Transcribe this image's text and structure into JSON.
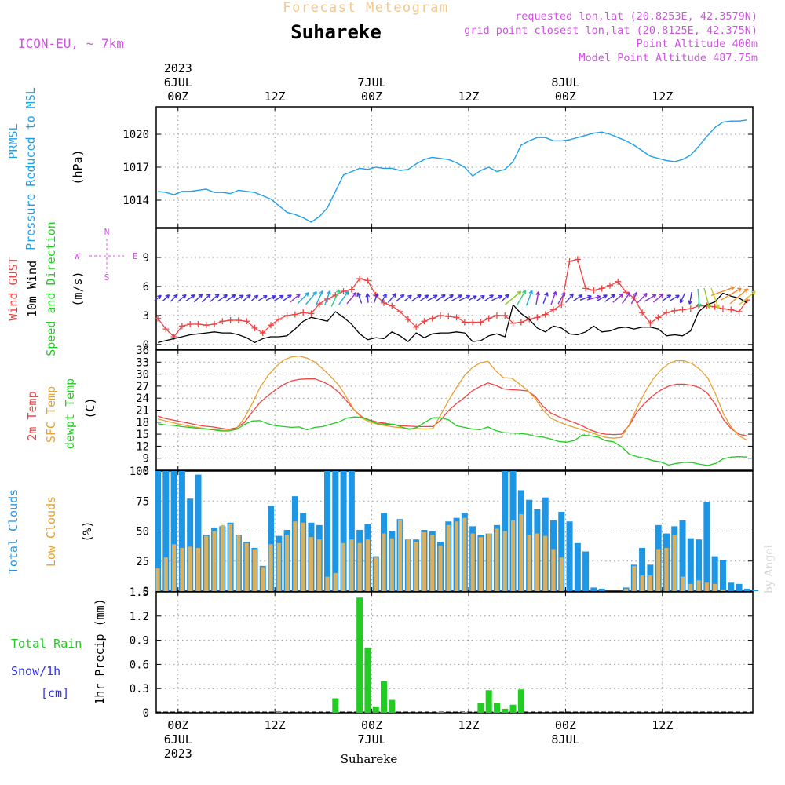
{
  "header": {
    "title": "Forecast Meteogram",
    "location": "Suhareke",
    "model": "ICON-EU, ~ 7km",
    "requested": "requested lon,lat (20.8253E, 42.3579N)",
    "gridpoint": "grid point closest lon,lat (20.8125E, 42.375N)",
    "point_alt": "Point Altitude 400m",
    "model_alt": "Model Point Altitude 487.75m",
    "footer": "Suhareke",
    "watermark": "by Angel",
    "compass": {
      "n": "N",
      "s": "S",
      "e": "E",
      "w": "W"
    }
  },
  "colors": {
    "pressure": "#1ea0e8",
    "gust": "#ee4444",
    "wind": "#000000",
    "t2m": "#ee4444",
    "sfc": "#e8a030",
    "dew": "#22cc22",
    "total_clouds": "#1e96e6",
    "low_clouds": "#d8b060",
    "rain": "#22cc22",
    "snow": "#3333ee",
    "label_title": "#f0c890",
    "label_header": "#cc55dd"
  },
  "chart_data": [
    {
      "type": "line",
      "name": "pressure",
      "panel_labels": [
        "PRMSL",
        "Pressure Reduced to MSL",
        "(hPa)"
      ],
      "y_ticks": [
        1014,
        1017,
        1020
      ],
      "ylim": [
        1011.5,
        1022.5
      ],
      "x_ticks": [
        {
          "h": 0,
          "top": [
            "2023",
            "6JUL",
            "00Z"
          ],
          "bottom": [
            "00Z",
            "6JUL",
            "2023"
          ]
        },
        {
          "h": 12,
          "top": [
            "12Z"
          ],
          "bottom": [
            "12Z"
          ]
        },
        {
          "h": 24,
          "top": [
            "7JUL",
            "00Z"
          ],
          "bottom": [
            "00Z",
            "7JUL"
          ]
        },
        {
          "h": 36,
          "top": [
            "12Z"
          ],
          "bottom": [
            "12Z"
          ]
        },
        {
          "h": 48,
          "top": [
            "8JUL",
            "00Z"
          ],
          "bottom": [
            "00Z",
            "8JUL"
          ]
        },
        {
          "h": 60,
          "top": [
            "12Z"
          ],
          "bottom": [
            "12Z"
          ]
        }
      ],
      "xlim": [
        -2.7,
        71.2
      ],
      "x": [
        -2.5,
        -1.5,
        -0.5,
        0.5,
        1.5,
        2.5,
        3.5,
        4.5,
        5.5,
        6.5,
        7.5,
        8.5,
        9.5,
        10.5,
        11.5,
        12.5,
        13.5,
        14.5,
        15.5,
        16.5,
        17.5,
        18.5,
        19.5,
        20.5,
        21.5,
        22.5,
        23.5,
        24.5,
        25.5,
        26.5,
        27.5,
        28.5,
        29.5,
        30.5,
        31.5,
        32.5,
        33.5,
        34.5,
        35.5,
        36.5,
        37.5,
        38.5,
        39.5,
        40.5,
        41.5,
        42.5,
        43.5,
        44.5,
        45.5,
        46.5,
        47.5,
        48.5,
        49.5,
        50.5,
        51.5,
        52.5,
        53.5,
        54.5,
        55.5,
        56.5,
        57.5,
        58.5,
        59.5,
        60.5,
        61.5,
        62.5,
        63.5,
        64.5,
        65.5,
        66.5,
        67.5,
        68.5,
        69.5,
        70.5
      ],
      "y": [
        1014.8,
        1014.7,
        1014.5,
        1014.8,
        1014.8,
        1014.9,
        1015.0,
        1014.7,
        1014.7,
        1014.6,
        1014.9,
        1014.8,
        1014.7,
        1014.4,
        1014.1,
        1013.5,
        1012.9,
        1012.7,
        1012.4,
        1012.0,
        1012.5,
        1013.3,
        1014.8,
        1016.3,
        1016.6,
        1016.9,
        1016.8,
        1017.0,
        1016.9,
        1016.9,
        1016.7,
        1016.8,
        1017.3,
        1017.7,
        1017.9,
        1017.8,
        1017.7,
        1017.4,
        1017.0,
        1016.2,
        1016.7,
        1017.0,
        1016.6,
        1016.8,
        1017.5,
        1019.0,
        1019.4,
        1019.7,
        1019.7,
        1019.4,
        1019.4,
        1019.5,
        1019.7,
        1019.9,
        1020.1,
        1020.2,
        1020.0,
        1019.7,
        1019.4,
        1019.0,
        1018.5,
        1018.0,
        1017.8,
        1017.6,
        1017.5,
        1017.7,
        1018.1,
        1018.9,
        1019.8,
        1020.6,
        1021.1,
        1021.2,
        1021.2,
        1021.3
      ]
    },
    {
      "type": "line",
      "name": "wind",
      "panel_labels": [
        "Wind GUST",
        "10m Wind",
        "Speed and Direction",
        "(m/s)"
      ],
      "y_ticks": [
        0,
        3,
        6,
        9
      ],
      "ylim": [
        -0.5,
        12.0
      ],
      "xlim": [
        -2.7,
        71.2
      ],
      "gust": [
        2.7,
        1.6,
        0.8,
        1.9,
        2.1,
        2.1,
        2.0,
        2.1,
        2.4,
        2.5,
        2.5,
        2.4,
        1.7,
        1.2,
        2.0,
        2.6,
        3.0,
        3.1,
        3.3,
        3.2,
        4.2,
        4.7,
        5.1,
        5.5,
        5.7,
        6.8,
        6.6,
        5.1,
        4.3,
        4.0,
        3.4,
        2.6,
        1.8,
        2.4,
        2.7,
        3.0,
        2.9,
        2.8,
        2.3,
        2.3,
        2.3,
        2.7,
        3.0,
        3.0,
        2.2,
        2.3,
        2.6,
        2.8,
        3.1,
        3.6,
        4.1,
        8.6,
        8.8,
        5.8,
        5.6,
        5.8,
        6.1,
        6.5,
        5.4,
        4.8,
        3.3,
        2.2,
        2.8,
        3.3,
        3.5,
        3.6,
        3.7,
        4.0,
        4.0,
        3.9,
        3.7,
        3.6,
        3.4,
        4.6
      ],
      "speed": [
        0.2,
        0.4,
        0.6,
        0.8,
        1.0,
        1.1,
        1.2,
        1.3,
        1.2,
        1.2,
        1.0,
        0.7,
        0.2,
        0.6,
        0.8,
        0.8,
        0.9,
        1.6,
        2.4,
        2.8,
        2.6,
        2.4,
        3.4,
        2.8,
        2.1,
        1.1,
        0.5,
        0.7,
        0.6,
        1.3,
        0.9,
        0.3,
        1.2,
        0.7,
        1.1,
        1.2,
        1.2,
        1.3,
        1.2,
        0.3,
        0.4,
        0.9,
        1.1,
        0.8,
        4.1,
        3.2,
        2.6,
        1.7,
        1.3,
        1.9,
        1.7,
        1.1,
        1.0,
        1.3,
        1.9,
        1.3,
        1.4,
        1.7,
        1.8,
        1.6,
        1.8,
        1.8,
        1.6,
        0.9,
        1.0,
        0.9,
        1.4,
        3.4,
        4.1,
        4.4,
        5.3,
        5.0,
        4.8,
        4.3
      ]
    },
    {
      "type": "line",
      "name": "temperature",
      "panel_labels": [
        "2m Temp",
        "SFC Temp",
        "dewpt Temp",
        "(C)"
      ],
      "y_ticks": [
        6,
        9,
        12,
        15,
        18,
        21,
        24,
        27,
        30,
        33,
        36
      ],
      "ylim": [
        6,
        36
      ],
      "xlim": [
        -2.7,
        71.2
      ],
      "series": [
        {
          "name": "2m Temp",
          "values": [
            19.5,
            18.9,
            18.5,
            18.1,
            17.7,
            17.3,
            17.0,
            16.8,
            16.5,
            16.2,
            16.6,
            17.9,
            20.5,
            22.9,
            24.6,
            26.1,
            27.4,
            28.3,
            28.7,
            28.8,
            28.8,
            28.1,
            27.1,
            25.5,
            23.4,
            21.0,
            19.3,
            18.5,
            18.0,
            17.7,
            17.4,
            17.1,
            17.0,
            16.9,
            16.9,
            16.9,
            18.5,
            20.9,
            22.6,
            24.1,
            25.8,
            26.9,
            27.8,
            27.2,
            26.3,
            26.1,
            26.0,
            25.8,
            24.5,
            22.0,
            20.3,
            19.4,
            18.6,
            17.9,
            17.1,
            16.1,
            15.4,
            15.0,
            14.9,
            15.0,
            17.2,
            20.6,
            22.8,
            24.6,
            26.0,
            27.0,
            27.5,
            27.5,
            27.2,
            26.6,
            25.1,
            22.3,
            18.6,
            16.3,
            15.0,
            14.5
          ]
        },
        {
          "name": "SFC Temp",
          "values": [
            18.8,
            18.3,
            17.8,
            17.4,
            17.0,
            16.7,
            16.4,
            16.2,
            16.0,
            15.9,
            16.4,
            19.0,
            22.6,
            26.6,
            29.6,
            31.8,
            33.5,
            34.3,
            34.5,
            34.0,
            33.0,
            31.3,
            29.4,
            27.3,
            24.3,
            21.0,
            19.0,
            18.0,
            17.5,
            17.1,
            16.8,
            16.6,
            16.4,
            16.4,
            16.3,
            16.4,
            19.8,
            23.4,
            26.6,
            29.6,
            31.6,
            32.8,
            33.2,
            30.8,
            29.1,
            29.0,
            27.6,
            26.0,
            24.0,
            21.1,
            19.0,
            18.1,
            17.3,
            16.7,
            16.1,
            15.5,
            14.8,
            14.2,
            14.0,
            14.2,
            17.5,
            21.7,
            25.5,
            28.7,
            31.0,
            32.6,
            33.4,
            33.3,
            32.6,
            31.2,
            29.0,
            24.9,
            20.0,
            16.7,
            14.5,
            13.5
          ]
        },
        {
          "name": "dewpt Temp",
          "values": [
            17.6,
            17.3,
            17.2,
            16.9,
            16.7,
            16.5,
            16.3,
            16.1,
            15.8,
            15.8,
            16.2,
            17.4,
            18.3,
            18.4,
            17.6,
            17.1,
            16.9,
            16.7,
            16.8,
            16.1,
            16.7,
            16.9,
            17.5,
            18.0,
            19.0,
            19.3,
            19.2,
            18.4,
            17.6,
            17.5,
            17.5,
            16.8,
            16.2,
            16.7,
            18.0,
            19.1,
            19.1,
            18.6,
            17.1,
            16.7,
            16.3,
            16.1,
            16.8,
            15.9,
            15.4,
            15.3,
            15.2,
            15.0,
            14.5,
            14.3,
            13.8,
            13.2,
            13.0,
            13.4,
            14.8,
            14.6,
            14.3,
            13.4,
            13.1,
            11.9,
            10.0,
            9.4,
            9.0,
            8.4,
            8.1,
            7.3,
            7.7,
            8.0,
            7.9,
            7.5,
            7.2,
            7.7,
            8.9,
            9.3,
            9.4,
            9.3
          ]
        }
      ],
      "wind_dir_from_deg": [
        230,
        225,
        225,
        230,
        235,
        225,
        225,
        230,
        235,
        235,
        240,
        230,
        230,
        240,
        245,
        240,
        235,
        230,
        225,
        220,
        205,
        200,
        205,
        215,
        220,
        160,
        175,
        200,
        210,
        220,
        230,
        230,
        235,
        235,
        240,
        235,
        235,
        240,
        245,
        240,
        235,
        235,
        245,
        225,
        230,
        210,
        200,
        190,
        200,
        200,
        210,
        220,
        235,
        250,
        255,
        240,
        235,
        230,
        215,
        205,
        225,
        240,
        230,
        235,
        240,
        25,
        10,
        355,
        345,
        340,
        250,
        240,
        230,
        230
      ]
    },
    {
      "type": "bar",
      "name": "clouds",
      "panel_labels": [
        "Total Clouds",
        "Low Clouds",
        "(%)"
      ],
      "y_ticks": [
        0,
        25,
        50,
        75,
        100
      ],
      "ylim": [
        0,
        100
      ],
      "xlim": [
        -2.7,
        71.2
      ],
      "series": [
        {
          "name": "Total Clouds",
          "values": [
            100,
            100,
            100,
            100,
            77,
            97,
            47,
            53,
            54,
            57,
            47,
            41,
            36,
            21,
            71,
            46,
            51,
            79,
            65,
            57,
            55,
            100,
            100,
            100,
            100,
            51,
            56,
            29,
            65,
            50,
            60,
            43,
            43,
            51,
            50,
            41,
            58,
            61,
            65,
            54,
            47,
            48,
            55,
            100,
            100,
            84,
            76,
            68,
            78,
            59,
            66,
            58,
            40,
            33,
            3,
            2,
            0,
            0,
            3,
            22,
            36,
            22,
            55,
            48,
            54,
            59,
            44,
            43,
            74,
            29,
            26,
            7,
            6,
            2,
            1
          ]
        },
        {
          "name": "Low Clouds",
          "values": [
            19,
            28,
            39,
            36,
            37,
            36,
            46,
            50,
            55,
            56,
            47,
            40,
            35,
            20,
            39,
            40,
            47,
            58,
            57,
            45,
            43,
            12,
            15,
            40,
            43,
            40,
            43,
            28,
            48,
            44,
            59,
            43,
            41,
            49,
            47,
            38,
            55,
            58,
            61,
            48,
            45,
            48,
            52,
            50,
            59,
            64,
            47,
            48,
            46,
            35,
            28,
            0,
            0,
            0,
            0,
            0,
            0,
            0,
            2,
            21,
            13,
            13,
            35,
            36,
            47,
            12,
            6,
            9,
            7,
            6,
            1,
            0,
            0,
            0,
            0
          ]
        }
      ]
    },
    {
      "type": "bar",
      "name": "precipitation",
      "panel_labels": [
        "Total  Rain",
        "Snow/1h",
        "[cm]",
        "1hr Precip (mm)"
      ],
      "y_ticks": [
        "0",
        "0.3",
        "0.6",
        "0.9",
        "1.2",
        "1.5"
      ],
      "ylim": [
        0,
        1.5
      ],
      "xlim": [
        -2.7,
        71.2
      ],
      "hours": [
        12.5,
        19.5,
        22.5,
        23.5,
        24.5,
        25.5,
        26.5,
        32.5,
        35.5,
        37.5,
        38.5,
        39.5,
        40.5,
        41.5,
        42.5
      ],
      "values": [
        0.01,
        0.18,
        1.43,
        0.81,
        0.08,
        0.39,
        0.16,
        0.01,
        0.01,
        0.12,
        0.28,
        0.12,
        0.05,
        0.1,
        0.29
      ]
    }
  ]
}
